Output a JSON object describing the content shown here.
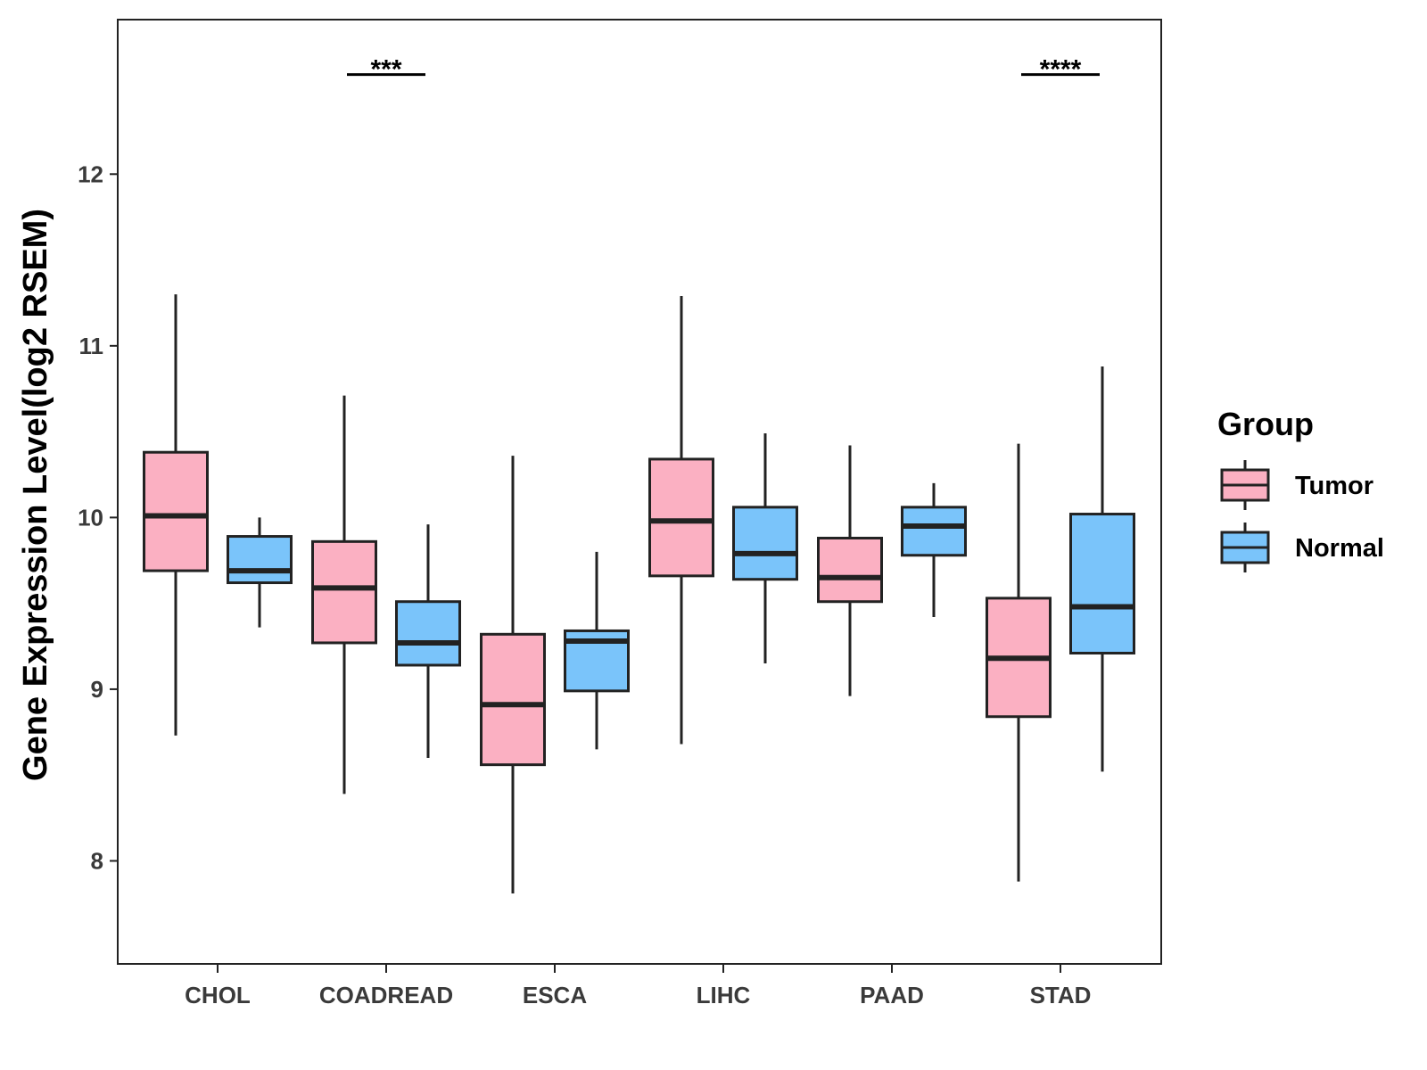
{
  "chart_data": {
    "type": "boxplot",
    "title": "",
    "xlabel": "",
    "ylabel": "Gene Expression Level(log2 RSEM)",
    "ylim": [
      7.4,
      12.9
    ],
    "yticks": [
      8,
      9,
      10,
      11,
      12
    ],
    "grid": false,
    "categories": [
      "CHOL",
      "COADREAD",
      "ESCA",
      "LIHC",
      "PAAD",
      "STAD"
    ],
    "legend": {
      "title": "Group",
      "position": "right",
      "entries": [
        "Tumor",
        "Normal"
      ]
    },
    "series": [
      {
        "name": "Tumor",
        "color": "#FBB0C2",
        "boxes": [
          {
            "min": 8.73,
            "q1": 9.69,
            "median": 10.01,
            "q3": 10.38,
            "max": 11.3
          },
          {
            "min": 8.39,
            "q1": 9.27,
            "median": 9.59,
            "q3": 9.86,
            "max": 10.71
          },
          {
            "min": 7.81,
            "q1": 8.56,
            "median": 8.91,
            "q3": 9.32,
            "max": 10.36
          },
          {
            "min": 8.68,
            "q1": 9.66,
            "median": 9.98,
            "q3": 10.34,
            "max": 11.29
          },
          {
            "min": 8.96,
            "q1": 9.51,
            "median": 9.65,
            "q3": 9.88,
            "max": 10.42
          },
          {
            "min": 7.88,
            "q1": 8.84,
            "median": 9.18,
            "q3": 9.53,
            "max": 10.43
          }
        ]
      },
      {
        "name": "Normal",
        "color": "#7AC4FA",
        "boxes": [
          {
            "min": 9.36,
            "q1": 9.62,
            "median": 9.69,
            "q3": 9.89,
            "max": 10.0
          },
          {
            "min": 8.6,
            "q1": 9.14,
            "median": 9.27,
            "q3": 9.51,
            "max": 9.96
          },
          {
            "min": 8.65,
            "q1": 8.99,
            "median": 9.28,
            "q3": 9.34,
            "max": 9.8
          },
          {
            "min": 9.15,
            "q1": 9.64,
            "median": 9.79,
            "q3": 10.06,
            "max": 10.49
          },
          {
            "min": 9.42,
            "q1": 9.78,
            "median": 9.95,
            "q3": 10.06,
            "max": 10.2
          },
          {
            "min": 8.52,
            "q1": 9.21,
            "median": 9.48,
            "q3": 10.02,
            "max": 10.88
          }
        ]
      }
    ],
    "annotations": [
      {
        "category": "COADREAD",
        "label": "***",
        "y": 12.58
      },
      {
        "category": "STAD",
        "label": "****",
        "y": 12.58
      }
    ]
  }
}
